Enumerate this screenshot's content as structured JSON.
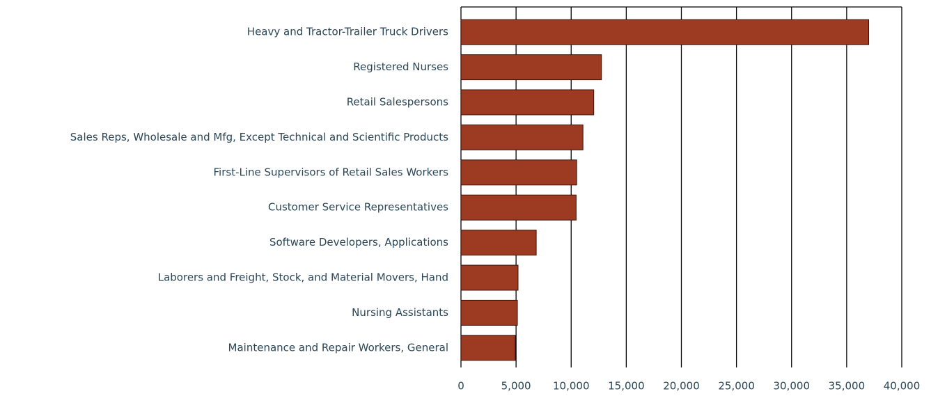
{
  "chart_data": {
    "type": "bar",
    "orientation": "horizontal",
    "categories": [
      "Heavy and Tractor-Trailer Truck Drivers",
      "Registered Nurses",
      "Retail Salespersons",
      "Sales Reps, Wholesale and Mfg, Except Technical and Scientific Products",
      "First-Line Supervisors of Retail Sales Workers",
      "Customer Service Representatives",
      "Software Developers, Applications",
      "Laborers and Freight, Stock, and Material Movers, Hand",
      "Nursing Assistants",
      "Maintenance and Repair Workers, General"
    ],
    "values": [
      37000,
      12750,
      12050,
      11070,
      10500,
      10450,
      6830,
      5180,
      5120,
      4930
    ],
    "color": "#9c3a22",
    "xlim": [
      0,
      40000
    ],
    "xticks": [
      0,
      {
        "value": 5000,
        "label": "5,000"
      },
      {
        "value": 10000,
        "label": "10,000"
      },
      {
        "value": 15000,
        "label": "15,000"
      },
      {
        "value": 20000,
        "label": "20,000"
      },
      {
        "value": 25000,
        "label": "25,000"
      },
      {
        "value": 30000,
        "label": "30,000"
      },
      {
        "value": 35000,
        "label": "35,000"
      },
      {
        "value": 40000,
        "label": "40,000"
      }
    ],
    "grid": true
  }
}
